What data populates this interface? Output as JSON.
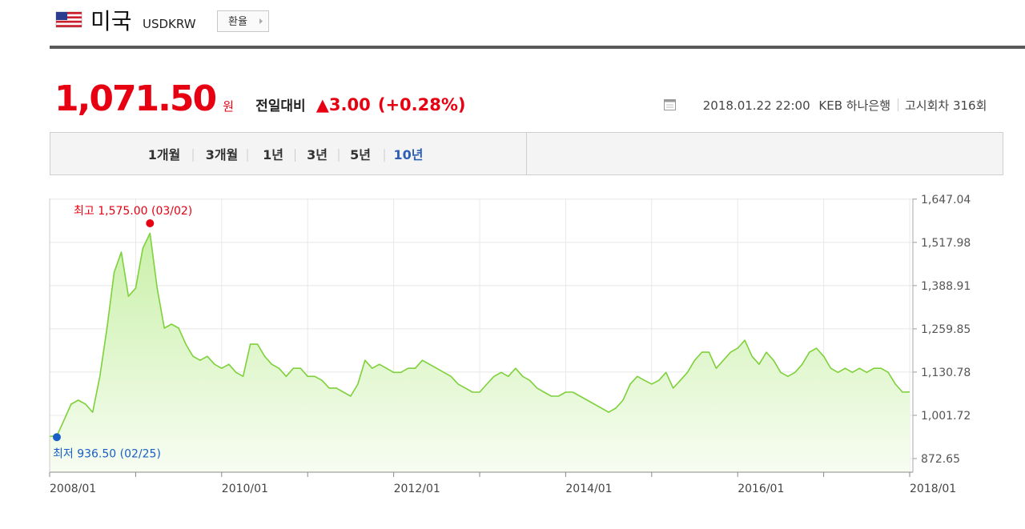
{
  "header": {
    "title": "미국",
    "code": "USDKRW",
    "button": "환율"
  },
  "quote": {
    "price": "1,071.50",
    "unit": "원",
    "change_label": "전일대비",
    "change": "▲3.00",
    "change_pct": "(+0.28%)",
    "datetime": "2018.01.22 22:00",
    "bank": "KEB 하나은행",
    "notice": "고시회차 316회"
  },
  "tabs": [
    "1개월",
    "3개월",
    "1년",
    "3년",
    "5년",
    "10년"
  ],
  "active_tab": 5,
  "chart_data": {
    "type": "area",
    "x": [
      "2008/01",
      "2008/02",
      "2008/03",
      "2008/04",
      "2008/05",
      "2008/06",
      "2008/07",
      "2008/08",
      "2008/09",
      "2008/10",
      "2008/11",
      "2008/12",
      "2009/01",
      "2009/02",
      "2009/03",
      "2009/04",
      "2009/05",
      "2009/06",
      "2009/07",
      "2009/08",
      "2009/09",
      "2009/10",
      "2009/11",
      "2009/12",
      "2010/01",
      "2010/02",
      "2010/03",
      "2010/04",
      "2010/05",
      "2010/06",
      "2010/07",
      "2010/08",
      "2010/09",
      "2010/10",
      "2010/11",
      "2010/12",
      "2011/01",
      "2011/02",
      "2011/03",
      "2011/04",
      "2011/05",
      "2011/06",
      "2011/07",
      "2011/08",
      "2011/09",
      "2011/10",
      "2011/11",
      "2011/12",
      "2012/01",
      "2012/02",
      "2012/03",
      "2012/04",
      "2012/05",
      "2012/06",
      "2012/07",
      "2012/08",
      "2012/09",
      "2012/10",
      "2012/11",
      "2012/12",
      "2013/01",
      "2013/02",
      "2013/03",
      "2013/04",
      "2013/05",
      "2013/06",
      "2013/07",
      "2013/08",
      "2013/09",
      "2013/10",
      "2013/11",
      "2013/12",
      "2014/01",
      "2014/02",
      "2014/03",
      "2014/04",
      "2014/05",
      "2014/06",
      "2014/07",
      "2014/08",
      "2014/09",
      "2014/10",
      "2014/11",
      "2014/12",
      "2015/01",
      "2015/02",
      "2015/03",
      "2015/04",
      "2015/05",
      "2015/06",
      "2015/07",
      "2015/08",
      "2015/09",
      "2015/10",
      "2015/11",
      "2015/12",
      "2016/01",
      "2016/02",
      "2016/03",
      "2016/04",
      "2016/05",
      "2016/06",
      "2016/07",
      "2016/08",
      "2016/09",
      "2016/10",
      "2016/11",
      "2016/12",
      "2017/01",
      "2017/02",
      "2017/03",
      "2017/04",
      "2017/05",
      "2017/06",
      "2017/07",
      "2017/08",
      "2017/09",
      "2017/10",
      "2017/11",
      "2017/12",
      "2018/01"
    ],
    "series": [
      {
        "color": "#7dd13a",
        "values": [
          939,
          940,
          987,
          1035,
          1047,
          1035,
          1011,
          1118,
          1262,
          1429,
          1489,
          1357,
          1381,
          1500,
          1545,
          1381,
          1262,
          1274,
          1262,
          1214,
          1178,
          1166,
          1178,
          1154,
          1142,
          1154,
          1130,
          1118,
          1214,
          1214,
          1178,
          1154,
          1142,
          1118,
          1142,
          1142,
          1118,
          1118,
          1106,
          1083,
          1083,
          1071,
          1059,
          1095,
          1166,
          1142,
          1154,
          1142,
          1130,
          1130,
          1142,
          1142,
          1166,
          1154,
          1142,
          1130,
          1118,
          1095,
          1083,
          1071,
          1071,
          1095,
          1118,
          1130,
          1118,
          1142,
          1118,
          1106,
          1083,
          1071,
          1059,
          1059,
          1071,
          1071,
          1059,
          1047,
          1035,
          1023,
          1011,
          1023,
          1047,
          1095,
          1118,
          1106,
          1095,
          1106,
          1130,
          1083,
          1106,
          1130,
          1166,
          1190,
          1190,
          1142,
          1166,
          1190,
          1202,
          1226,
          1178,
          1154,
          1190,
          1166,
          1130,
          1118,
          1130,
          1154,
          1190,
          1202,
          1178,
          1142,
          1130,
          1142,
          1130,
          1142,
          1130,
          1142,
          1142,
          1130,
          1095,
          1071,
          1071.5
        ]
      }
    ],
    "ylim": [
      832,
      1649
    ],
    "yticks": [
      {
        "value": 1647.04,
        "label": "1,647.04"
      },
      {
        "value": 1517.98,
        "label": "1,517.98"
      },
      {
        "value": 1388.91,
        "label": "1,388.91"
      },
      {
        "value": 1259.85,
        "label": "1,259.85"
      },
      {
        "value": 1130.78,
        "label": "1,130.78"
      },
      {
        "value": 1001.72,
        "label": "1,001.72"
      },
      {
        "value": 872.65,
        "label": "872.65"
      }
    ],
    "xticks": [
      "2008/01",
      "2010/01",
      "2012/01",
      "2014/01",
      "2016/01",
      "2018/01"
    ],
    "grid": true,
    "high": {
      "label": "최고 1,575.00 (03/02)",
      "value": 1575,
      "x": "2009/03",
      "color": "#e60012"
    },
    "low": {
      "label": "최저 936.50 (02/25)",
      "value": 936.5,
      "x": "2008/02",
      "color": "#1a5fc8"
    }
  }
}
